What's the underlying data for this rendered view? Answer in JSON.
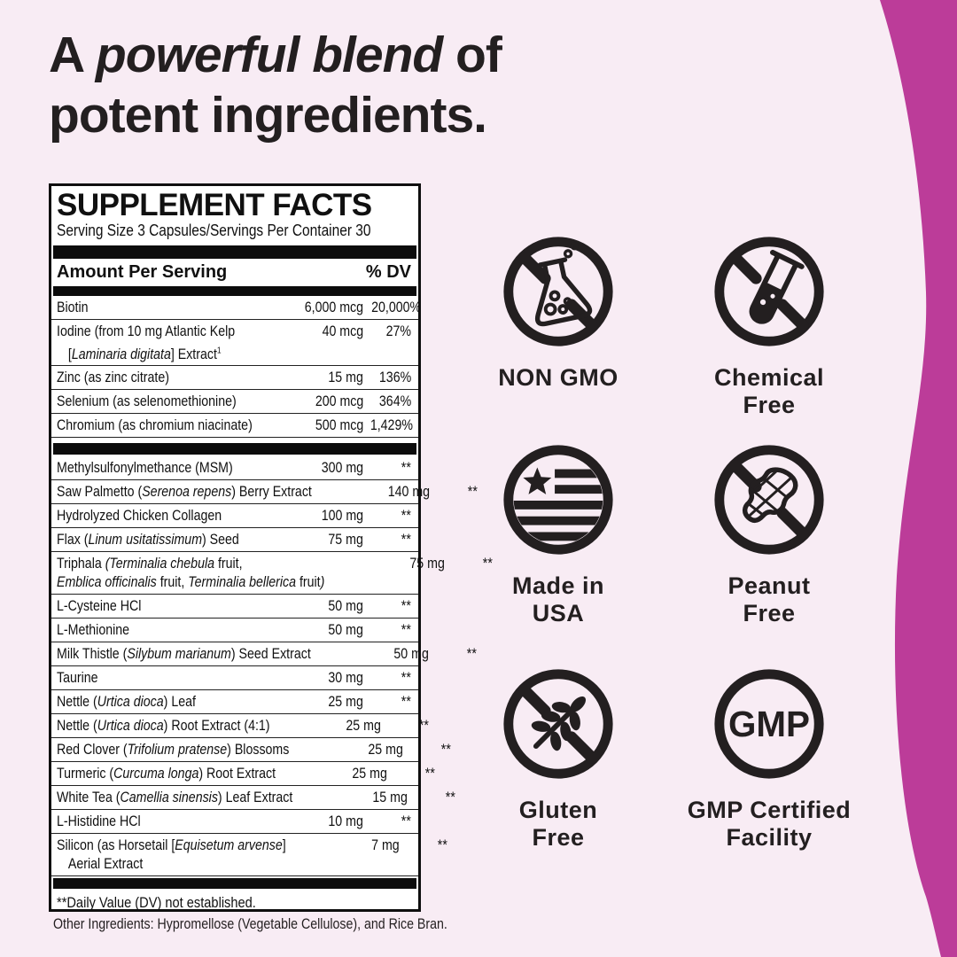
{
  "colors": {
    "background": "#F8ECF4",
    "accent": "#BC3C99",
    "ink": "#231F20"
  },
  "title": {
    "prefix": "A ",
    "emphasis": "powerful blend",
    "suffix": " of",
    "line2": "potent ingredients."
  },
  "panel": {
    "heading": "SUPPLEMENT FACTS",
    "serving_line": "Serving Size 3 Capsules/Servings Per Container 30",
    "col_amount": "Amount Per Serving",
    "col_dv": "% DV",
    "sections": [
      {
        "rows": [
          {
            "name": "Biotin",
            "amount": "6,000 mcg",
            "dv": "20,000%"
          },
          {
            "name": "Iodine (from 10 mg Atlantic Kelp<br><span class=\"ind\">[<i>Laminaria digitata</i>] Extract<sup>1</sup></span>",
            "amount": "40 mcg",
            "dv": "27%",
            "tall": true
          },
          {
            "name": "Zinc (as zinc citrate)",
            "amount": "15 mg",
            "dv": "136%"
          },
          {
            "name": "Selenium (as selenomethionine)",
            "amount": "200 mcg",
            "dv": "364%"
          },
          {
            "name": "Chromium (as chromium niacinate)",
            "amount": "500 mcg",
            "dv": "1,429%"
          }
        ]
      },
      {
        "rows": [
          {
            "name": "Methylsulfonylmethance (MSM)",
            "amount": "300 mg",
            "dv": "**"
          },
          {
            "name": "Saw Palmetto (<i>Serenoa repens</i>) Berry Extract",
            "amount": "140 mg",
            "dv": "**"
          },
          {
            "name": "Hydrolyzed Chicken Collagen",
            "amount": "100 mg",
            "dv": "**"
          },
          {
            "name": "Flax (<i>Linum usitatissimum</i>) Seed",
            "amount": "75 mg",
            "dv": "**"
          },
          {
            "name": "Triphala <i>(Terminalia chebula</i> fruit,<br><i>Emblica officinalis</i> fruit, <i>Terminalia bellerica</i> fruit<i>)</i>",
            "amount": "75 mg",
            "dv": "**",
            "tall": true
          },
          {
            "name": "L-Cysteine HCl",
            "amount": "50 mg",
            "dv": "**"
          },
          {
            "name": "L-Methionine",
            "amount": "50 mg",
            "dv": "**"
          },
          {
            "name": "Milk Thistle (<i>Silybum marianum</i>) Seed Extract",
            "amount": "50 mg",
            "dv": "**"
          },
          {
            "name": "Taurine",
            "amount": "30 mg",
            "dv": "**"
          },
          {
            "name": "Nettle (<i>Urtica dioca</i>) Leaf",
            "amount": "25 mg",
            "dv": "**"
          },
          {
            "name": "Nettle (<i>Urtica dioca</i>) Root Extract (4:1)",
            "amount": "25 mg",
            "dv": "**"
          },
          {
            "name": "Red Clover (<i>Trifolium pratense</i>) Blossoms",
            "amount": "25 mg",
            "dv": "**"
          },
          {
            "name": "Turmeric (<i>Curcuma longa</i>) Root Extract",
            "amount": "25 mg",
            "dv": "**"
          },
          {
            "name": "White Tea (<i>Camellia sinensis</i>) Leaf Extract",
            "amount": "15 mg",
            "dv": "**"
          },
          {
            "name": "L-Histidine HCl",
            "amount": "10 mg",
            "dv": "**"
          },
          {
            "name": "Silicon (as Horsetail [<i>Equisetum arvense</i>]<br><span class=\"ind\">Aerial Extract</span>",
            "amount": "7 mg",
            "dv": "**",
            "tall": true
          }
        ]
      }
    ],
    "footnote": "**Daily Value (DV) not established.",
    "other_ingredients": "Other Ingredients: Hypromellose (Vegetable Cellulose), and Rice Bran."
  },
  "badges": [
    {
      "icon": "no-flask-icon",
      "line1": "NON GMO",
      "line2": ""
    },
    {
      "icon": "no-test-tube-icon",
      "line1": "Chemical",
      "line2": "Free"
    },
    {
      "icon": "usa-flag-icon",
      "line1": "Made in",
      "line2": "USA"
    },
    {
      "icon": "no-peanut-icon",
      "line1": "Peanut",
      "line2": "Free"
    },
    {
      "icon": "no-wheat-icon",
      "line1": "Gluten",
      "line2": "Free"
    },
    {
      "icon": "gmp-icon",
      "line1": "GMP Certified",
      "line2": "Facility",
      "icon_text": "GMP"
    }
  ]
}
